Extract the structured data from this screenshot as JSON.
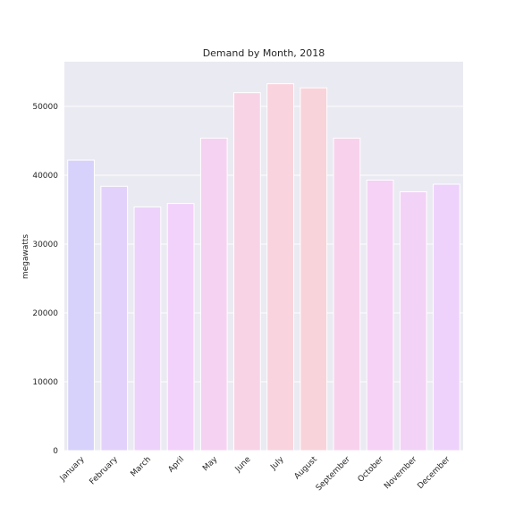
{
  "chart_data": {
    "type": "bar",
    "title": "Demand by Month, 2018",
    "xlabel": "",
    "ylabel": "megawatts",
    "ylim": [
      0,
      56500
    ],
    "yticks": [
      0,
      10000,
      20000,
      30000,
      40000,
      50000
    ],
    "grid": true,
    "categories": [
      "January",
      "February",
      "March",
      "April",
      "May",
      "June",
      "July",
      "August",
      "September",
      "October",
      "November",
      "December"
    ],
    "values": [
      42200,
      38400,
      35400,
      35900,
      45400,
      52000,
      53300,
      52700,
      45400,
      39300,
      37600,
      38700
    ],
    "colors": [
      "#d6d2fb",
      "#e2d2fb",
      "#edd2fb",
      "#f2d2fb",
      "#f6d2f2",
      "#f8d3e6",
      "#f9d3dd",
      "#f9d3da",
      "#f8d2ec",
      "#f5d2f6",
      "#f3d2f7",
      "#eed2fb"
    ],
    "plot_background": "#eaeaf2",
    "grid_color": "#ffffff"
  }
}
